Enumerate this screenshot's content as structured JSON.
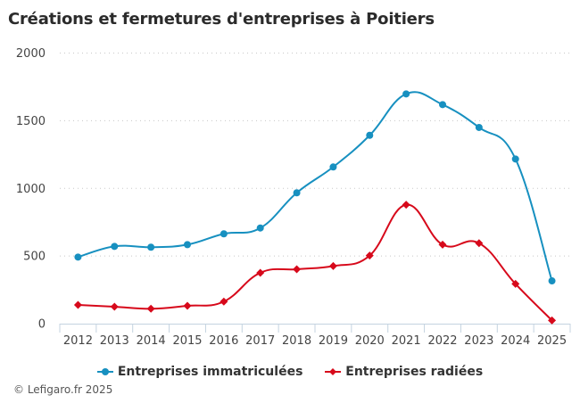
{
  "chart_data": {
    "type": "line",
    "title": "Créations et fermetures d'entreprises à Poitiers",
    "xlabel": "",
    "ylabel": "",
    "categories": [
      "2012",
      "2013",
      "2014",
      "2015",
      "2016",
      "2017",
      "2018",
      "2019",
      "2020",
      "2021",
      "2022",
      "2023",
      "2024",
      "2025"
    ],
    "ylim": [
      0,
      2000
    ],
    "yticks": [
      "0",
      "500",
      "1000",
      "1500",
      "2000"
    ],
    "grid": true,
    "legend_position": "bottom",
    "series": [
      {
        "name": "Entreprises immatriculées",
        "color": "#1790c0",
        "marker": "circle",
        "values": [
          492,
          571,
          565,
          584,
          664,
          707,
          967,
          1158,
          1392,
          1698,
          1619,
          1450,
          1217,
          316
        ]
      },
      {
        "name": "Entreprises radiées",
        "color": "#d7091b",
        "marker": "diamond",
        "values": [
          138,
          125,
          110,
          132,
          163,
          376,
          402,
          426,
          503,
          879,
          584,
          595,
          294,
          24
        ]
      }
    ]
  },
  "credit": "© Lefigaro.fr 2025"
}
